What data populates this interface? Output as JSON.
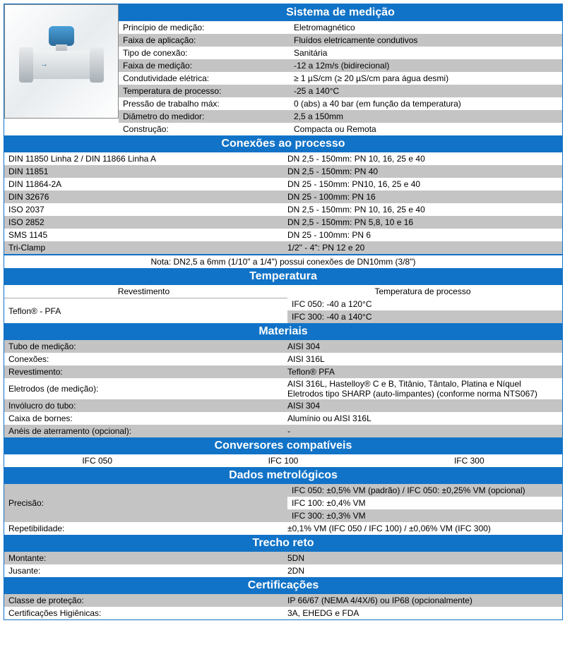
{
  "sections": {
    "sistema": {
      "title": "Sistema de medição",
      "rows": [
        {
          "label": "Princípio de medição:",
          "value": "Eletromagnético"
        },
        {
          "label": "Faixa de aplicação:",
          "value": "Fluídos eletricamente condutivos"
        },
        {
          "label": "Tipo de conexão:",
          "value": "Sanitária"
        },
        {
          "label": "Faixa de medição:",
          "value": "-12 a 12m/s (bidirecional)"
        },
        {
          "label": "Condutividade elétrica:",
          "value": "≥ 1 µS/cm (≥ 20 µS/cm para água desmi)"
        },
        {
          "label": "Temperatura de processo:",
          "value": "-25 a 140°C"
        },
        {
          "label": "Pressão de trabalho máx:",
          "value": "0 (abs) a 40 bar (em função da temperatura)"
        },
        {
          "label": "Diâmetro do medidor:",
          "value": "2,5 a 150mm"
        },
        {
          "label": "Construção:",
          "value": "Compacta ou Remota"
        }
      ]
    },
    "conexoes": {
      "title": "Conexões ao processo",
      "rows": [
        {
          "label": "DIN 11850 Linha 2 / DIN 11866 Linha A",
          "value": "DN 2,5 - 150mm: PN 10, 16, 25 e 40"
        },
        {
          "label": "DIN 11851",
          "value": "DN 2,5 - 150mm: PN 40"
        },
        {
          "label": "DIN 11864-2A",
          "value": "DN 25 - 150mm: PN10, 16, 25 e 40"
        },
        {
          "label": "DIN 32676",
          "value": "DN 25 - 100mm: PN 16"
        },
        {
          "label": "ISO 2037",
          "value": "DN 2,5 - 150mm: PN 10, 16, 25 e 40"
        },
        {
          "label": "ISO 2852",
          "value": "DN 2,5 - 150mm: PN 5,8, 10 e 16"
        },
        {
          "label": "SMS 1145",
          "value": "DN 25 - 100mm: PN 6"
        },
        {
          "label": "Tri-Clamp",
          "value": "1/2\" - 4\": PN 12 e 20"
        }
      ],
      "note": "Nota: DN2,5 a 6mm (1/10\" a 1/4\") possui conexões de DN10mm (3/8\")"
    },
    "temperatura": {
      "title": "Temperatura",
      "header": {
        "left": "Revestimento",
        "right": "Temperatura de processo"
      },
      "label": "Teflon® - PFA",
      "values": [
        "IFC 050: -40 a 120°C",
        "IFC 300: -40 a 140°C"
      ]
    },
    "materiais": {
      "title": "Materiais",
      "rows": [
        {
          "label": "Tubo de medição:",
          "value": "AISI 304"
        },
        {
          "label": "Conexões:",
          "value": "AISI 316L"
        },
        {
          "label": "Revestimento:",
          "value": "Teflon® PFA"
        },
        {
          "label": "Eletrodos (de medição):",
          "value": "AISI 316L, Hastelloy® C e B, Titânio, Tântalo, Platina e Níquel\nEletrodos tipo SHARP (auto-limpantes) (conforme norma NTS067)"
        },
        {
          "label": "Invólucro do tubo:",
          "value": "AISI 304"
        },
        {
          "label": "Caixa de bornes:",
          "value": "Alumínio ou AISI 316L"
        },
        {
          "label": "Anéis de aterramento (opcional):",
          "value": "-"
        }
      ]
    },
    "conversores": {
      "title": "Conversores compatíveis",
      "items": [
        "IFC 050",
        "IFC 100",
        "IFC 300"
      ]
    },
    "dados": {
      "title": "Dados metrológicos",
      "precisao_label": "Precisão:",
      "precisao_values": [
        "IFC 050: ±0,5% VM (padrão) / IFC 050: ±0,25% VM (opcional)",
        "IFC 100: ±0,4% VM",
        "IFC 300: ±0,3% VM"
      ],
      "repet": {
        "label": "Repetibilidade:",
        "value": "±0,1% VM (IFC 050 / IFC 100) / ±0,06% VM (IFC 300)"
      }
    },
    "trecho": {
      "title": "Trecho reto",
      "rows": [
        {
          "label": "Montante:",
          "value": "5DN"
        },
        {
          "label": "Jusante:",
          "value": "2DN"
        }
      ]
    },
    "cert": {
      "title": "Certificações",
      "rows": [
        {
          "label": "Classe de proteção:",
          "value": "IP 66/67 (NEMA 4/4X/6) ou IP68 (opcionalmente)"
        },
        {
          "label": "Certificações Higiênicas:",
          "value": "3A, EHEDG e FDA"
        }
      ]
    }
  }
}
